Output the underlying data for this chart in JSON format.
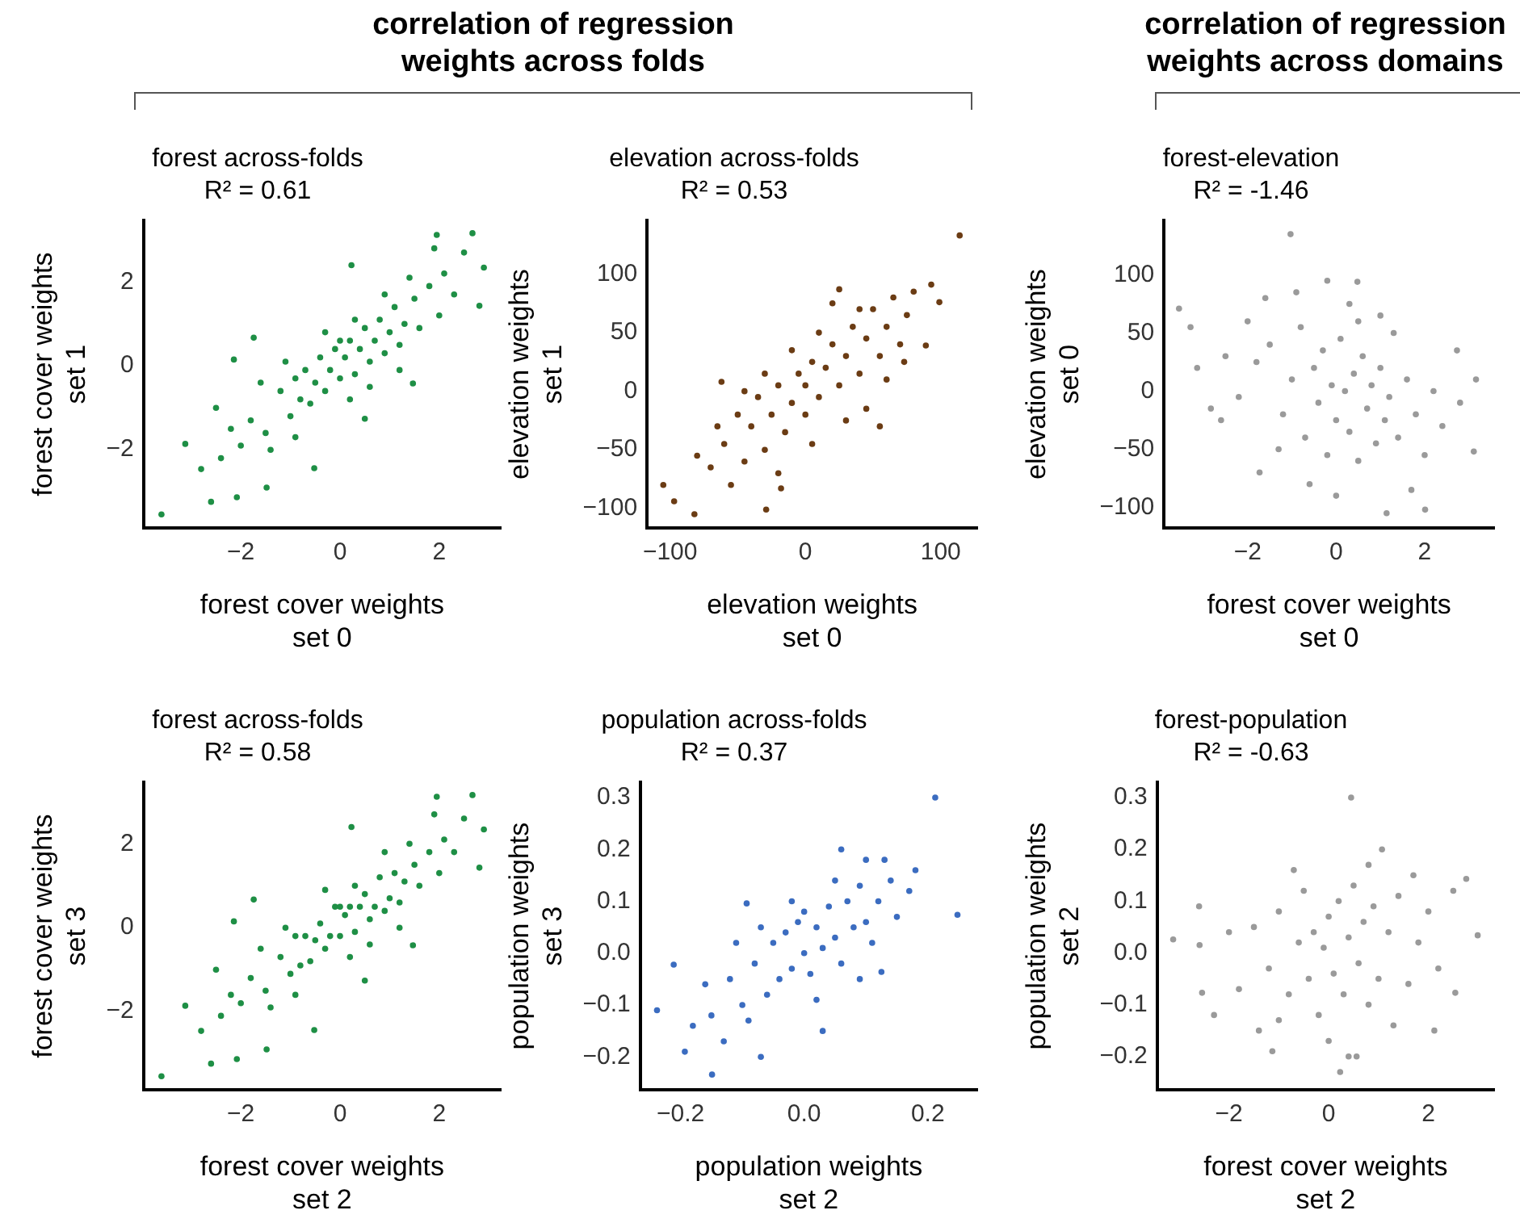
{
  "chart_data": [
    {
      "type": "scatter",
      "title": "forest across-folds",
      "subtitle": "R² = 0.61",
      "xlabel": "forest cover weights\nset 0",
      "ylabel": "forest cover weights\nset 1",
      "annotations": [
        "correlation of regression\nweights across folds"
      ],
      "color": "#1e8f45",
      "marker": "circle",
      "xlim": [
        -3.96,
        3.24
      ],
      "ylim": [
        -3.87,
        3.47
      ],
      "xticks": [
        {
          "value": -2,
          "label": "−2"
        },
        0,
        2
      ],
      "yticks": [
        {
          "value": -2,
          "label": "−2"
        },
        0,
        2
      ],
      "grid": false,
      "legend": false,
      "x": [
        -3.6,
        1.95,
        2.67,
        2.9,
        2.81,
        0.23,
        -1.74,
        -2.14,
        -3.12,
        -2.8,
        -2.6,
        -2.08,
        -1.48,
        -0.52,
        1.47,
        0.5,
        -2.5,
        -1.5,
        -1.2,
        -1.0,
        -0.9,
        -0.8,
        -0.7,
        -0.6,
        -0.5,
        -0.4,
        -0.3,
        -0.2,
        -0.1,
        0,
        0.1,
        0.2,
        0.3,
        0.4,
        0.5,
        0.6,
        0.7,
        0.8,
        0.9,
        1.0,
        1.1,
        1.2,
        1.3,
        1.5,
        1.6,
        1.8,
        2.0,
        2.1,
        2.3,
        2.5,
        -1.8,
        -2.0,
        -2.2,
        -1.4,
        -1.1,
        -0.3,
        0.3,
        0.9,
        1.4,
        -0.9,
        0.0,
        0.6,
        1.9,
        -2.4,
        -1.6,
        0.2,
        1.2
      ],
      "values": [
        -3.54,
        3.12,
        3.16,
        2.34,
        1.43,
        2.4,
        0.67,
        0.15,
        -1.86,
        -2.46,
        -3.24,
        -3.13,
        -2.9,
        -2.44,
        -0.42,
        -1.26,
        -1.0,
        -1.6,
        -0.6,
        -1.2,
        -0.3,
        -0.8,
        -0.1,
        -0.9,
        -0.4,
        0.2,
        -0.6,
        -0.1,
        0.4,
        -0.3,
        0.2,
        0.6,
        -0.2,
        0.4,
        0.9,
        0.1,
        0.6,
        1.1,
        0.3,
        0.8,
        1.4,
        0.5,
        1.0,
        1.6,
        0.9,
        1.9,
        1.2,
        2.2,
        1.7,
        2.7,
        -1.3,
        -1.9,
        -1.5,
        -2.0,
        0.1,
        0.8,
        1.1,
        1.7,
        2.1,
        -1.7,
        0.6,
        -0.5,
        2.8,
        -2.2,
        -0.4,
        -0.8,
        -0.1
      ]
    },
    {
      "type": "scatter",
      "title": "elevation across-folds",
      "subtitle": "R² = 0.53",
      "xlabel": "elevation weights\nset 0",
      "ylabel": "elevation weights\nset 1",
      "color": "#6b3c14",
      "marker": "circle",
      "xlim": [
        -117,
        127
      ],
      "ylim": [
        -117,
        146
      ],
      "xticks": [
        {
          "value": -100,
          "label": "−100"
        },
        0,
        100
      ],
      "yticks": [
        {
          "value": -100,
          "label": "−100"
        },
        {
          "value": -50,
          "label": "−50"
        },
        0,
        50,
        100
      ],
      "grid": false,
      "legend": false,
      "x": [
        114,
        93,
        99,
        -105,
        -97,
        -82,
        -29,
        -18,
        89,
        -62,
        25,
        73,
        -60,
        -50,
        -45,
        -40,
        -35,
        -30,
        -25,
        -20,
        -15,
        -10,
        -5,
        0,
        0,
        5,
        10,
        15,
        20,
        25,
        30,
        35,
        40,
        45,
        50,
        55,
        60,
        65,
        70,
        75,
        -70,
        -80,
        -55,
        -65,
        -20,
        10,
        30,
        45,
        -30,
        20,
        60,
        80,
        -45,
        5,
        -10,
        40,
        55
      ],
      "values": [
        133,
        91,
        76,
        -80,
        -94,
        -105,
        -101,
        -83,
        39,
        8,
        87,
        25,
        -45,
        -20,
        -60,
        -30,
        -5,
        -50,
        -20,
        5,
        -35,
        -10,
        15,
        -20,
        5,
        25,
        -5,
        20,
        40,
        5,
        30,
        55,
        15,
        45,
        70,
        30,
        55,
        80,
        40,
        65,
        -65,
        -55,
        -80,
        -30,
        -70,
        50,
        -25,
        -15,
        15,
        75,
        10,
        85,
        0,
        -45,
        35,
        70,
        -30
      ]
    },
    {
      "type": "scatter",
      "title": "forest-elevation",
      "subtitle": "R² = -1.46",
      "xlabel": "forest cover weights\nset 0",
      "ylabel": "elevation weights\nset 0",
      "annotations": [
        "correlation of regression\nweights across domains"
      ],
      "color": "#9a9a9a",
      "marker": "circle",
      "xlim": [
        -3.89,
        3.57
      ],
      "ylim": [
        -118,
        147
      ],
      "xticks": [
        {
          "value": -2,
          "label": "−2"
        },
        0,
        2
      ],
      "yticks": [
        {
          "value": -100,
          "label": "−100"
        },
        {
          "value": -50,
          "label": "−50"
        },
        0,
        50,
        100
      ],
      "grid": false,
      "legend": false,
      "x": [
        -1.03,
        -3.55,
        -3.29,
        -3.14,
        -2.83,
        3.16,
        3.11,
        1.14,
        2.01,
        0.48,
        -1.73,
        2.73,
        -1.5,
        -1.2,
        -1.0,
        -0.8,
        -0.7,
        -0.5,
        -0.4,
        -0.3,
        -0.2,
        -0.1,
        0,
        0.1,
        0.2,
        0.3,
        0.4,
        0.5,
        0.6,
        0.7,
        0.8,
        0.9,
        1.0,
        1.1,
        1.2,
        1.4,
        1.6,
        1.8,
        2.0,
        2.2,
        -1.8,
        -2.0,
        -2.2,
        -2.5,
        -1.6,
        -0.9,
        0.3,
        1.3,
        2.4,
        -1.3,
        -0.6,
        0.0,
        1.7,
        2.8,
        -2.6,
        0.5,
        -0.2,
        1.0
      ],
      "values": [
        135,
        71,
        55,
        20,
        -15,
        10,
        -52,
        -105,
        -102,
        94,
        -70,
        35,
        40,
        -20,
        10,
        55,
        -40,
        20,
        -10,
        35,
        -55,
        5,
        -25,
        45,
        0,
        -35,
        15,
        -60,
        30,
        -15,
        5,
        -45,
        20,
        -25,
        -5,
        -40,
        10,
        -20,
        -55,
        0,
        25,
        60,
        -5,
        30,
        80,
        85,
        75,
        50,
        -30,
        -50,
        -80,
        -90,
        -85,
        -10,
        -25,
        60,
        95,
        65
      ]
    },
    {
      "type": "scatter",
      "title": "forest across-folds",
      "subtitle": "R² = 0.58",
      "xlabel": "forest cover weights\nset 2",
      "ylabel": "forest cover weights\nset 3",
      "color": "#1e8f45",
      "marker": "circle",
      "xlim": [
        -3.96,
        3.24
      ],
      "ylim": [
        -3.87,
        3.47
      ],
      "xticks": [
        {
          "value": -2,
          "label": "−2"
        },
        0,
        2
      ],
      "yticks": [
        {
          "value": -2,
          "label": "−2"
        },
        0,
        2
      ],
      "grid": false,
      "legend": false,
      "x": [
        -3.6,
        1.95,
        2.67,
        2.9,
        2.81,
        0.23,
        -1.74,
        -2.14,
        -3.12,
        -2.8,
        -2.6,
        -2.08,
        -1.48,
        -0.52,
        1.47,
        0.5,
        -2.5,
        -1.5,
        -1.2,
        -1.0,
        -0.9,
        -0.8,
        -0.7,
        -0.6,
        -0.5,
        -0.4,
        -0.3,
        -0.2,
        -0.1,
        0,
        0.1,
        0.2,
        0.3,
        0.4,
        0.5,
        0.6,
        0.7,
        0.8,
        0.9,
        1.0,
        1.1,
        1.2,
        1.3,
        1.5,
        1.6,
        1.8,
        2.0,
        2.1,
        2.3,
        2.5,
        -1.8,
        -2.0,
        -2.2,
        -1.4,
        -1.1,
        -0.3,
        0.3,
        0.9,
        1.4,
        -0.9,
        0.0,
        0.6,
        1.9,
        -2.4,
        -1.6,
        0.2,
        1.2
      ],
      "values": [
        -3.54,
        3.12,
        3.16,
        2.34,
        1.43,
        2.4,
        0.67,
        0.15,
        -1.86,
        -2.46,
        -3.24,
        -3.13,
        -2.9,
        -2.44,
        -0.42,
        -1.26,
        -1.0,
        -1.5,
        -0.7,
        -1.1,
        -0.2,
        -0.9,
        -0.2,
        -0.8,
        -0.3,
        0.1,
        -0.5,
        -0.2,
        0.5,
        -0.2,
        0.3,
        0.5,
        -0.1,
        0.5,
        0.8,
        0.2,
        0.5,
        1.2,
        0.4,
        0.7,
        1.3,
        0.6,
        1.1,
        1.5,
        1.0,
        1.8,
        1.3,
        2.1,
        1.8,
        2.6,
        -1.2,
        -1.8,
        -1.6,
        -1.9,
        0.0,
        0.9,
        1.0,
        1.8,
        2.0,
        -1.6,
        0.5,
        -0.4,
        2.7,
        -2.1,
        -0.5,
        -0.7,
        0.0
      ]
    },
    {
      "type": "scatter",
      "title": "population across-folds",
      "subtitle": "R² = 0.37",
      "xlabel": "population weights\nset 2",
      "ylabel": "population weights\nset 3",
      "color": "#3b6cc0",
      "marker": "circle",
      "xlim": [
        -0.265,
        0.28
      ],
      "ylim": [
        -0.264,
        0.33
      ],
      "xticks": [
        {
          "value": -0.2,
          "label": "−0.2"
        },
        {
          "value": 0,
          "label": "0.0"
        },
        0.2
      ],
      "yticks": [
        {
          "value": -0.2,
          "label": "−0.2"
        },
        {
          "value": -0.1,
          "label": "−0.1"
        },
        {
          "value": 0,
          "label": "0.0"
        },
        0.1,
        0.2,
        0.3
      ],
      "grid": false,
      "legend": false,
      "x": [
        0.212,
        0.248,
        -0.238,
        -0.149,
        -0.07,
        0.06,
        -0.093,
        -0.211,
        0.125,
        -0.193,
        -0.15,
        -0.12,
        -0.1,
        -0.08,
        -0.06,
        -0.05,
        -0.04,
        -0.03,
        -0.02,
        -0.01,
        0,
        0.01,
        0.02,
        0.03,
        0.04,
        0.05,
        0.06,
        0.07,
        0.08,
        0.09,
        0.1,
        0.11,
        0.12,
        0.14,
        0.15,
        0.17,
        0.18,
        -0.18,
        -0.13,
        -0.09,
        -0.07,
        -0.02,
        0.02,
        0.05,
        0.09,
        0.13,
        -0.16,
        0.0,
        0.03,
        0.1,
        -0.11
      ],
      "values": [
        0.3,
        0.074,
        -0.11,
        -0.234,
        -0.2,
        0.2,
        0.096,
        -0.022,
        -0.036,
        -0.19,
        -0.12,
        -0.05,
        -0.1,
        -0.02,
        -0.08,
        0.02,
        -0.05,
        0.04,
        -0.03,
        0.06,
        0,
        -0.04,
        0.05,
        0.01,
        0.09,
        0.03,
        -0.02,
        0.1,
        0.05,
        0.13,
        0.06,
        0.02,
        0.1,
        0.14,
        0.07,
        0.12,
        0.16,
        -0.14,
        -0.17,
        -0.13,
        0.05,
        0.1,
        -0.09,
        0.14,
        -0.05,
        0.18,
        -0.06,
        0.08,
        -0.15,
        0.18,
        0.02
      ]
    },
    {
      "type": "scatter",
      "title": "forest-population",
      "subtitle": "R² = -0.63",
      "xlabel": "forest cover weights\nset 2",
      "ylabel": "population weights\nset 2",
      "color": "#9a9a9a",
      "marker": "circle",
      "xlim": [
        -3.44,
        3.32
      ],
      "ylim": [
        -0.265,
        0.33
      ],
      "xticks": [
        {
          "value": -2,
          "label": "−2"
        },
        0,
        2
      ],
      "yticks": [
        {
          "value": -0.2,
          "label": "−0.2"
        },
        {
          "value": -0.1,
          "label": "−0.1"
        },
        {
          "value": 0,
          "label": "0.0"
        },
        0.1,
        0.2,
        0.3
      ],
      "grid": false,
      "legend": false,
      "x": [
        -3.12,
        -2.59,
        -2.54,
        0.45,
        2.99,
        2.76,
        2.54,
        2.12,
        0.23,
        0.56,
        1.07,
        -1.13,
        -1.5,
        -1.2,
        -1.0,
        -0.8,
        -0.6,
        -0.5,
        -0.4,
        -0.3,
        -0.2,
        -0.1,
        0,
        0.1,
        0.2,
        0.3,
        0.4,
        0.5,
        0.6,
        0.7,
        0.8,
        0.9,
        1.0,
        1.2,
        1.4,
        1.6,
        1.8,
        2.0,
        2.2,
        -1.8,
        -2.0,
        -2.3,
        -1.4,
        -0.7,
        0.0,
        0.8,
        1.3,
        -2.6,
        2.5,
        -1.0,
        0.4,
        1.7
      ],
      "values": [
        0.026,
        0.015,
        -0.077,
        0.3,
        0.034,
        0.143,
        -0.077,
        -0.15,
        -0.23,
        -0.2,
        0.2,
        -0.19,
        0.05,
        -0.03,
        0.08,
        -0.08,
        0.02,
        0.12,
        -0.05,
        0.04,
        -0.12,
        0.01,
        0.07,
        -0.04,
        0.1,
        -0.08,
        0.03,
        0.13,
        -0.02,
        0.06,
        -0.1,
        0.09,
        -0.05,
        0.04,
        0.11,
        -0.06,
        0.02,
        0.08,
        -0.03,
        -0.07,
        0.04,
        -0.12,
        -0.15,
        0.16,
        -0.17,
        0.17,
        -0.14,
        0.09,
        0.12,
        -0.13,
        -0.2,
        0.15
      ]
    }
  ]
}
